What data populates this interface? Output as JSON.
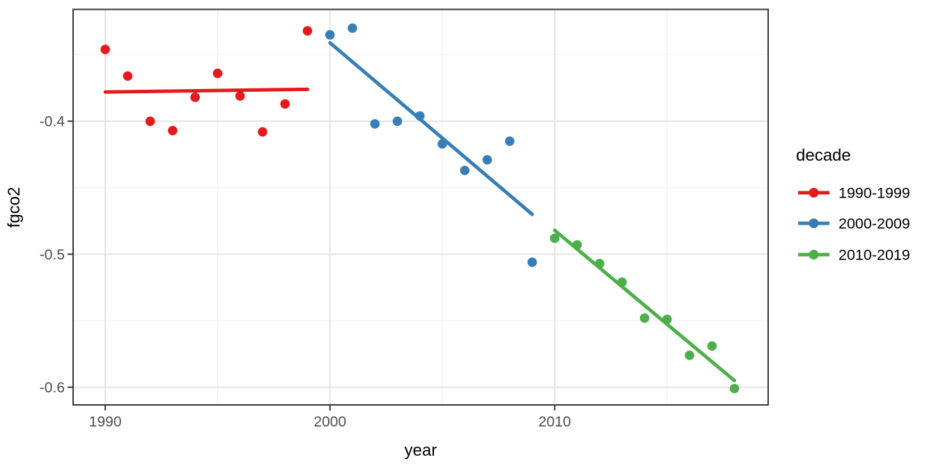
{
  "figure": {
    "background": "#ffffff",
    "panel_background": "#ffffff",
    "panel_border_color": "#343434",
    "grid_major_color": "#e4e4e4",
    "grid_minor_color": "#f0f0f0",
    "tick_color": "#333333",
    "tick_label_color": "#4d4d4d"
  },
  "chart_data": {
    "type": "scatter",
    "title": "",
    "xlabel": "year",
    "ylabel": "fgco2",
    "xlim": [
      1988.57,
      2019.5
    ],
    "ylim": [
      -0.6133,
      -0.3159
    ],
    "grid": true,
    "x_major_ticks": [
      1990,
      2000,
      2010
    ],
    "x_major_labels": [
      "1990",
      "2000",
      "2010"
    ],
    "x_minor_ticks": [
      1995,
      2005,
      2015
    ],
    "y_major_ticks": [
      -0.4,
      -0.5,
      -0.6
    ],
    "y_major_labels": [
      "-0.4",
      "-0.5",
      "-0.6"
    ],
    "y_minor_ticks": [
      -0.35,
      -0.45,
      -0.55
    ],
    "legend": {
      "title": "decade",
      "position": "right"
    },
    "series": [
      {
        "name": "1990-1999",
        "color": "#E41A1C",
        "x": [
          1990,
          1991,
          1992,
          1993,
          1994,
          1995,
          1996,
          1997,
          1998,
          1999
        ],
        "y": [
          -0.346,
          -0.366,
          -0.4,
          -0.407,
          -0.382,
          -0.364,
          -0.381,
          -0.408,
          -0.387,
          -0.332
        ],
        "trend": {
          "x": [
            1990,
            1999
          ],
          "y": [
            -0.378,
            -0.376
          ]
        }
      },
      {
        "name": "2000-2009",
        "color": "#377EB8",
        "x": [
          2000,
          2001,
          2002,
          2003,
          2004,
          2005,
          2006,
          2007,
          2008,
          2009
        ],
        "y": [
          -0.335,
          -0.33,
          -0.402,
          -0.4,
          -0.396,
          -0.417,
          -0.437,
          -0.429,
          -0.415,
          -0.506
        ],
        "trend": {
          "x": [
            2000,
            2009
          ],
          "y": [
            -0.341,
            -0.47
          ]
        }
      },
      {
        "name": "2010-2019",
        "color": "#4DAF4A",
        "x": [
          2010,
          2011,
          2012,
          2013,
          2014,
          2015,
          2016,
          2017,
          2018
        ],
        "y": [
          -0.488,
          -0.493,
          -0.507,
          -0.521,
          -0.548,
          -0.549,
          -0.576,
          -0.569,
          -0.601
        ],
        "trend": {
          "x": [
            2010,
            2018
          ],
          "y": [
            -0.482,
            -0.595
          ]
        }
      }
    ]
  }
}
